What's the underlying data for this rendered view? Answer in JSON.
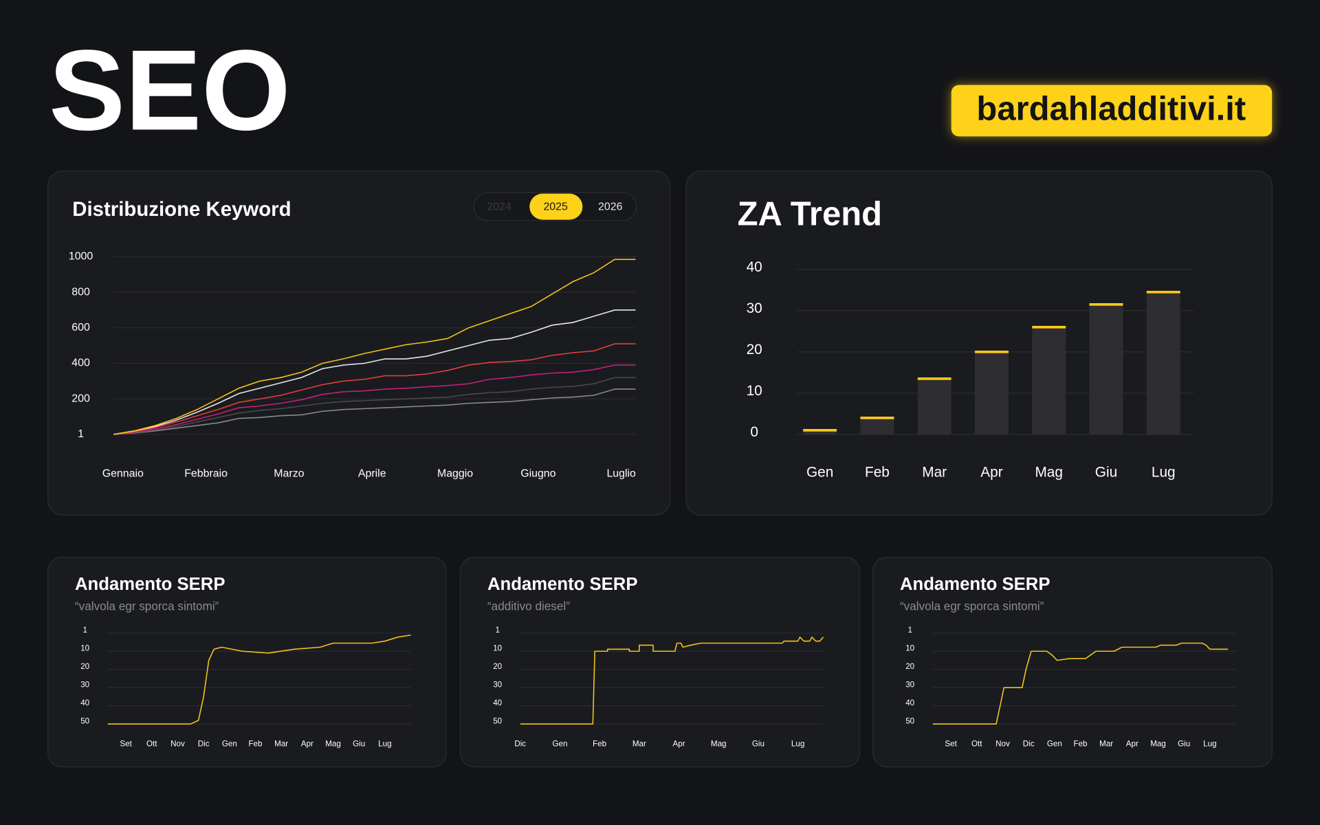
{
  "header": {
    "title": "SEO",
    "site": "bardahladditivi.it"
  },
  "chart_data": [
    {
      "type": "line",
      "title": "Distribuzione Keyword",
      "years": [
        "2024",
        "2025",
        "2026"
      ],
      "selected_year": 1,
      "x": [
        0,
        0.24,
        0.48,
        0.72,
        0.96,
        1.2,
        1.44,
        1.68,
        1.92,
        2.16,
        2.4,
        2.64,
        2.88,
        3.12,
        3.36,
        3.6,
        3.84,
        4.08,
        4.32,
        4.56,
        4.8,
        5.04,
        5.28,
        5.52,
        5.76,
        6
      ],
      "xlim": [
        0,
        6
      ],
      "xticks": [
        {
          "value": 0,
          "label": "Gennaio"
        },
        {
          "value": 1,
          "label": "Febbraio"
        },
        {
          "value": 2,
          "label": "Marzo"
        },
        {
          "value": 3,
          "label": "Aprile"
        },
        {
          "value": 4,
          "label": "Maggio"
        },
        {
          "value": 5,
          "label": "Giugno"
        },
        {
          "value": 6,
          "label": "Luglio"
        }
      ],
      "ylim": [
        0,
        1000
      ],
      "yticks": [
        1,
        200,
        400,
        600,
        800,
        1000
      ],
      "grid": true,
      "series": [
        {
          "color": "#8a8a8e",
          "values": [
            0,
            8,
            20,
            35,
            50,
            65,
            90,
            95,
            105,
            110,
            130,
            140,
            145,
            150,
            155,
            160,
            165,
            175,
            180,
            185,
            195,
            205,
            210,
            220,
            255,
            255
          ]
        },
        {
          "color": "#4a4a4e",
          "values": [
            0,
            10,
            25,
            45,
            70,
            95,
            120,
            135,
            145,
            160,
            175,
            185,
            190,
            195,
            200,
            205,
            210,
            225,
            235,
            240,
            255,
            265,
            270,
            285,
            320,
            320
          ]
        },
        {
          "color": "#c4207c",
          "values": [
            0,
            12,
            32,
            55,
            85,
            115,
            150,
            160,
            175,
            195,
            225,
            240,
            245,
            255,
            260,
            268,
            275,
            285,
            310,
            320,
            335,
            345,
            350,
            365,
            390,
            390
          ]
        },
        {
          "color": "#e2403a",
          "values": [
            0,
            15,
            40,
            70,
            105,
            140,
            180,
            200,
            220,
            250,
            280,
            300,
            310,
            330,
            330,
            340,
            360,
            390,
            405,
            410,
            420,
            445,
            460,
            470,
            510,
            510
          ]
        },
        {
          "color": "#e8e8ea",
          "values": [
            0,
            20,
            45,
            80,
            125,
            175,
            230,
            260,
            290,
            320,
            370,
            390,
            400,
            425,
            425,
            440,
            470,
            500,
            530,
            540,
            575,
            615,
            630,
            665,
            700,
            700
          ]
        },
        {
          "color": "#f2c41a",
          "values": [
            0,
            20,
            50,
            90,
            140,
            200,
            260,
            300,
            320,
            350,
            400,
            425,
            455,
            480,
            505,
            520,
            540,
            600,
            640,
            680,
            720,
            790,
            860,
            910,
            985,
            985
          ]
        }
      ]
    },
    {
      "type": "bar",
      "title": "ZA Trend",
      "categories": [
        "Gen",
        "Feb",
        "Mar",
        "Apr",
        "Mag",
        "Giu",
        "Lug"
      ],
      "values": [
        1,
        4,
        13.5,
        20,
        26,
        31.5,
        34.5
      ],
      "color": "#2e2e32",
      "cap_color": "#ffc917",
      "ylim": [
        0,
        40
      ],
      "yticks": [
        0,
        10,
        20,
        30,
        40
      ],
      "grid": true
    },
    {
      "type": "serp",
      "title": "Andamento SERP",
      "subtitle": "“valvola egr sporca sintomi”",
      "x": [
        -0.7,
        2.5,
        2.8,
        3.0,
        3.2,
        3.4,
        3.7,
        4.5,
        5.5,
        6.5,
        7.5,
        8,
        8.5,
        9.5,
        10,
        10.5,
        11
      ],
      "series": [
        {
          "color": "#f2c41a",
          "values": [
            50,
            50,
            48,
            35,
            15,
            9,
            8,
            10,
            11,
            9,
            8,
            6,
            6,
            6,
            5,
            3,
            2
          ]
        }
      ],
      "xlim": [
        -0.7,
        11
      ],
      "xticks": [
        {
          "value": 0,
          "label": "Set"
        },
        {
          "value": 1,
          "label": "Ott"
        },
        {
          "value": 2,
          "label": "Nov"
        },
        {
          "value": 3,
          "label": "Dic"
        },
        {
          "value": 4,
          "label": "Gen"
        },
        {
          "value": 5,
          "label": "Feb"
        },
        {
          "value": 6,
          "label": "Mar"
        },
        {
          "value": 7,
          "label": "Apr"
        },
        {
          "value": 8,
          "label": "Mag"
        },
        {
          "value": 9,
          "label": "Giu"
        },
        {
          "value": 10,
          "label": "Lug"
        }
      ],
      "ylim": [
        1,
        50
      ],
      "yticks": [
        1,
        10,
        20,
        30,
        40,
        50
      ],
      "y_inverted": true,
      "grid": true
    },
    {
      "type": "serp",
      "title": "Andamento SERP",
      "subtitle": "“additivo diesel”",
      "x": [
        0,
        1.83,
        1.88,
        2.2,
        2.2,
        2.75,
        2.75,
        3.0,
        3.0,
        3.35,
        3.35,
        3.9,
        3.95,
        4.05,
        4.1,
        4.3,
        4.55,
        6.6,
        6.65,
        7.0,
        7.05,
        7.15,
        7.3,
        7.35,
        7.45,
        7.55,
        7.64
      ],
      "series": [
        {
          "color": "#f2c41a",
          "values": [
            50,
            50,
            10,
            10,
            9,
            9,
            10,
            10,
            7,
            7,
            10,
            10,
            6,
            6,
            8,
            7,
            6,
            6,
            5,
            5,
            3,
            5,
            5,
            3,
            5,
            5,
            3
          ]
        }
      ],
      "xlim": [
        0,
        7.64
      ],
      "xticks": [
        {
          "value": 0,
          "label": "Dic"
        },
        {
          "value": 1,
          "label": "Gen"
        },
        {
          "value": 2,
          "label": "Feb"
        },
        {
          "value": 3,
          "label": "Mar"
        },
        {
          "value": 4,
          "label": "Apr"
        },
        {
          "value": 5,
          "label": "Mag"
        },
        {
          "value": 6,
          "label": "Giu"
        },
        {
          "value": 7,
          "label": "Lug"
        }
      ],
      "ylim": [
        1,
        50
      ],
      "yticks": [
        1,
        10,
        20,
        30,
        40,
        50
      ],
      "y_inverted": true,
      "grid": true
    },
    {
      "type": "serp",
      "title": "Andamento SERP",
      "subtitle": "“valvola egr sporca sintomi”",
      "x": [
        -0.7,
        1.75,
        1.9,
        2.05,
        2.75,
        2.9,
        3.1,
        3.7,
        3.9,
        4.1,
        4.6,
        5.2,
        5.4,
        5.6,
        6.3,
        6.6,
        7.9,
        8.1,
        8.7,
        8.9,
        9.7,
        9.85,
        10,
        10.7
      ],
      "series": [
        {
          "color": "#f2c41a",
          "values": [
            50,
            50,
            40,
            30,
            30,
            20,
            10,
            10,
            12,
            15,
            14,
            14,
            12,
            10,
            10,
            8,
            8,
            7,
            7,
            6,
            6,
            7,
            9,
            9
          ]
        }
      ],
      "xlim": [
        -0.7,
        11
      ],
      "xticks": [
        {
          "value": 0,
          "label": "Set"
        },
        {
          "value": 1,
          "label": "Ott"
        },
        {
          "value": 2,
          "label": "Nov"
        },
        {
          "value": 3,
          "label": "Dic"
        },
        {
          "value": 4,
          "label": "Gen"
        },
        {
          "value": 5,
          "label": "Feb"
        },
        {
          "value": 6,
          "label": "Mar"
        },
        {
          "value": 7,
          "label": "Apr"
        },
        {
          "value": 8,
          "label": "Mag"
        },
        {
          "value": 9,
          "label": "Giu"
        },
        {
          "value": 10,
          "label": "Lug"
        }
      ],
      "ylim": [
        1,
        50
      ],
      "yticks": [
        1,
        10,
        20,
        30,
        40,
        50
      ],
      "y_inverted": true,
      "grid": true
    }
  ]
}
